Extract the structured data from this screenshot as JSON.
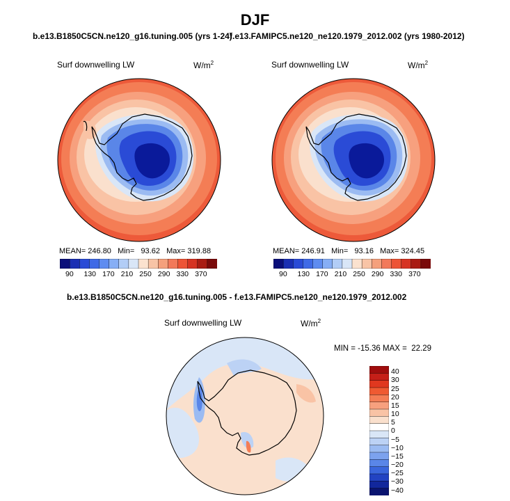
{
  "season": "DJF",
  "title_overlap": {
    "case1": "b.e13.B1850C5CN.ne120_g16.tuning.005 (yrs 1-24)",
    "case2": "f.e13.FAMIPC5.ne120_ne120.1979_2012.002 (yrs 1980-2012)"
  },
  "panel_left": {
    "var_label": "Surf downwelling LW",
    "units": "W/m",
    "units_sup": "2",
    "mean": "246.80",
    "min": "93.62",
    "max": "319.88",
    "stat_labels": {
      "mean": "MEAN=",
      "min": "Min=",
      "max": "Max="
    }
  },
  "panel_right": {
    "var_label": "Surf downwelling LW",
    "units": "W/m",
    "units_sup": "2",
    "mean": "246.91",
    "min": "93.16",
    "max": "324.45",
    "stat_labels": {
      "mean": "MEAN=",
      "min": "Min=",
      "max": "Max="
    }
  },
  "main_colorbar": {
    "colors": [
      "#0a0f7a",
      "#1a2fb3",
      "#2a4bd6",
      "#3f6ae6",
      "#5e8cf0",
      "#86aef5",
      "#b2cdf6",
      "#d9e6f7",
      "#fbe2cf",
      "#f8c4a6",
      "#f5a07c",
      "#f2795a",
      "#ed5436",
      "#d63322",
      "#a91c13",
      "#7a0a0a"
    ],
    "tick_labels": [
      "90",
      "130",
      "170",
      "210",
      "250",
      "290",
      "330",
      "370"
    ]
  },
  "diff_panel": {
    "title": "b.e13.B1850C5CN.ne120_g16.tuning.005 - f.e13.FAMIPC5.ne120_ne120.1979_2012.002",
    "var_label": "Surf downwelling LW",
    "units": "W/m",
    "units_sup": "2",
    "min_max_text": "MIN = -15.36 MAX =  22.29"
  },
  "diff_colorbar": {
    "colors": [
      "#a00d0d",
      "#c51f18",
      "#e0381f",
      "#ef5a32",
      "#f47d55",
      "#f7a07e",
      "#f9c3a5",
      "#fae0cd",
      "#ffffff",
      "#d9e6f7",
      "#bcd2f5",
      "#9bbbf2",
      "#7ca2ee",
      "#5a86e8",
      "#3a66dc",
      "#2243c2",
      "#12279c",
      "#0a1470"
    ],
    "tick_labels": [
      "40",
      "30",
      "25",
      "20",
      "15",
      "10",
      "5",
      "0",
      "−5",
      "−10",
      "−15",
      "−20",
      "−25",
      "−30",
      "−40"
    ]
  }
}
